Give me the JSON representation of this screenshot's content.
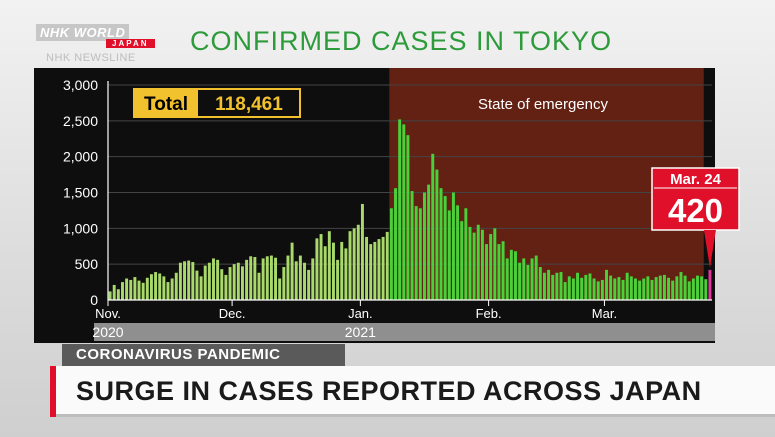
{
  "broadcaster": {
    "logo_main": "NHK WORLD",
    "logo_sub": "JAPAN",
    "program": "NHK NEWSLINE"
  },
  "headline": "CONFIRMED CASES IN TOKYO",
  "lower_third": {
    "category": "CORONAVIRUS PANDEMIC",
    "headline": "SURGE IN CASES REPORTED ACROSS JAPAN"
  },
  "colors": {
    "title": "#2e9b3b",
    "bar_pre": "#a9d96a",
    "bar_emergency": "#4ad13a",
    "bar_latest": "#e0359a",
    "emergency_band": "#6b2314",
    "accent_red": "#e0102a",
    "total_box": "#f2c12e"
  },
  "chart_data": {
    "type": "bar",
    "title": "",
    "xlabel": "",
    "ylabel": "",
    "ylim": [
      0,
      3000
    ],
    "y_ticks": [
      0,
      500,
      1000,
      1500,
      2000,
      2500,
      3000
    ],
    "y_tick_labels": [
      "0",
      "500",
      "1,000",
      "1,500",
      "2,000",
      "2,500",
      "3,000"
    ],
    "x_month_labels": [
      "Nov.",
      "Dec.",
      "Jan.",
      "Feb.",
      "Mar."
    ],
    "x_month_start_index": [
      0,
      30,
      61,
      92,
      120
    ],
    "x_year_labels": [
      {
        "label": "2020",
        "index": 0
      },
      {
        "label": "2021",
        "index": 61
      }
    ],
    "total_label": "Total",
    "total_value": "118,461",
    "emergency_label": "State of emergency",
    "emergency_range": [
      68,
      144
    ],
    "latest_label": "Mar. 24",
    "latest_value": "420",
    "series": [
      {
        "values": [
          120,
          210,
          150,
          250,
          300,
          280,
          320,
          270,
          240,
          310,
          360,
          390,
          370,
          330,
          250,
          300,
          380,
          520,
          540,
          550,
          530,
          410,
          330,
          480,
          520,
          580,
          560,
          430,
          350,
          460,
          500,
          520,
          470,
          560,
          610,
          600,
          380,
          580,
          610,
          620,
          590,
          300,
          460,
          620,
          800,
          540,
          620,
          520,
          420,
          580,
          860,
          920,
          750,
          960,
          800,
          560,
          810,
          720,
          960,
          1000,
          1050,
          1340,
          880,
          780,
          810,
          850,
          880,
          950,
          1280,
          1560,
          2520,
          2450,
          2300,
          1520,
          1310,
          1280,
          1500,
          1610,
          2040,
          1820,
          1560,
          1450,
          1250,
          1500,
          1320,
          1100,
          1280,
          1020,
          940,
          1050,
          980,
          780,
          920,
          1000,
          780,
          820,
          580,
          700,
          680,
          520,
          580,
          490,
          580,
          620,
          460,
          380,
          420,
          350,
          380,
          390,
          250,
          330,
          300,
          380,
          310,
          350,
          370,
          300,
          260,
          280,
          420,
          340,
          300,
          320,
          280,
          380,
          330,
          300,
          270,
          300,
          330,
          280,
          320,
          340,
          350,
          310,
          270,
          330,
          390,
          340,
          260,
          300,
          340,
          330,
          290,
          420
        ]
      }
    ]
  }
}
